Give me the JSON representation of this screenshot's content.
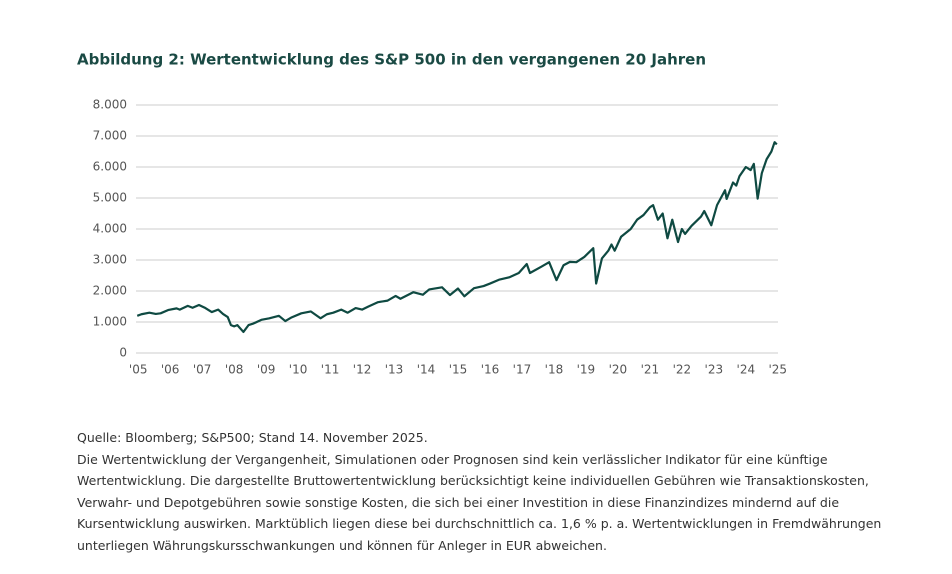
{
  "chart_data": {
    "type": "line",
    "title": "Abbildung 2: Wertentwicklung des S&P 500 in den vergangenen 20 Jahren",
    "x": [
      2005.87,
      2006.0,
      2006.25,
      2006.45,
      2006.6,
      2006.85,
      2007.1,
      2007.2,
      2007.45,
      2007.6,
      2007.8,
      2008.0,
      2008.2,
      2008.4,
      2008.55,
      2008.7,
      2008.8,
      2008.9,
      2009.0,
      2009.19,
      2009.35,
      2009.5,
      2009.75,
      2010.0,
      2010.3,
      2010.5,
      2010.7,
      2011.0,
      2011.3,
      2011.6,
      2011.8,
      2012.0,
      2012.25,
      2012.45,
      2012.7,
      2012.9,
      2013.1,
      2013.4,
      2013.7,
      2013.95,
      2014.1,
      2014.5,
      2014.8,
      2015.0,
      2015.4,
      2015.65,
      2015.9,
      2016.1,
      2016.4,
      2016.7,
      2016.9,
      2017.2,
      2017.5,
      2017.8,
      2018.05,
      2018.15,
      2018.5,
      2018.75,
      2018.98,
      2019.2,
      2019.4,
      2019.6,
      2019.85,
      2020.05,
      2020.13,
      2020.22,
      2020.4,
      2020.6,
      2020.7,
      2020.8,
      2021.0,
      2021.3,
      2021.5,
      2021.7,
      2021.9,
      2022.0,
      2022.15,
      2022.3,
      2022.45,
      2022.6,
      2022.78,
      2022.9,
      2023.0,
      2023.2,
      2023.5,
      2023.6,
      2023.82,
      2024.0,
      2024.25,
      2024.3,
      2024.5,
      2024.6,
      2024.7,
      2024.9,
      2025.05,
      2025.15,
      2025.27,
      2025.4,
      2025.55,
      2025.7,
      2025.8,
      2025.87
    ],
    "series": [
      {
        "name": "S&P500",
        "color": "#0f4a42",
        "values": [
          1200,
          1250,
          1300,
          1260,
          1280,
          1390,
          1440,
          1400,
          1520,
          1460,
          1550,
          1450,
          1320,
          1400,
          1260,
          1160,
          900,
          860,
          900,
          680,
          900,
          950,
          1070,
          1120,
          1200,
          1030,
          1150,
          1280,
          1340,
          1120,
          1250,
          1300,
          1400,
          1300,
          1450,
          1400,
          1500,
          1640,
          1690,
          1840,
          1750,
          1960,
          1880,
          2050,
          2120,
          1870,
          2080,
          1830,
          2090,
          2160,
          2240,
          2370,
          2440,
          2580,
          2870,
          2580,
          2780,
          2930,
          2350,
          2830,
          2940,
          2930,
          3100,
          3300,
          3380,
          2240,
          3050,
          3300,
          3500,
          3300,
          3750,
          4000,
          4300,
          4450,
          4700,
          4770,
          4300,
          4500,
          3700,
          4300,
          3580,
          4000,
          3840,
          4100,
          4400,
          4580,
          4120,
          4770,
          5250,
          4970,
          5500,
          5400,
          5700,
          6000,
          5900,
          6100,
          4980,
          5800,
          6250,
          6500,
          6800,
          6730
        ]
      }
    ],
    "xlim": [
      2005.8,
      2026.0
    ],
    "xticks": [
      {
        "value": 2005.9,
        "label": "'05"
      },
      {
        "value": 2006.9,
        "label": "'06"
      },
      {
        "value": 2007.9,
        "label": "'07"
      },
      {
        "value": 2008.9,
        "label": "'08"
      },
      {
        "value": 2009.9,
        "label": "'09"
      },
      {
        "value": 2010.9,
        "label": "'10"
      },
      {
        "value": 2011.9,
        "label": "'11"
      },
      {
        "value": 2012.9,
        "label": "'12"
      },
      {
        "value": 2013.9,
        "label": "'13"
      },
      {
        "value": 2014.9,
        "label": "'14"
      },
      {
        "value": 2015.9,
        "label": "'15"
      },
      {
        "value": 2016.9,
        "label": "'16"
      },
      {
        "value": 2017.9,
        "label": "'17"
      },
      {
        "value": 2018.9,
        "label": "'18"
      },
      {
        "value": 2019.9,
        "label": "'19"
      },
      {
        "value": 2020.9,
        "label": "'20"
      },
      {
        "value": 2021.9,
        "label": "'21"
      },
      {
        "value": 2022.9,
        "label": "'22"
      },
      {
        "value": 2023.9,
        "label": "'23"
      },
      {
        "value": 2024.9,
        "label": "'24"
      },
      {
        "value": 2025.9,
        "label": "'25"
      }
    ],
    "ylim": [
      0,
      8000
    ],
    "yticks": [
      0,
      {
        "value": 1000,
        "label": "1.000"
      },
      {
        "value": 2000,
        "label": "2.000"
      },
      {
        "value": 3000,
        "label": "3.000"
      },
      {
        "value": 4000,
        "label": "4.000"
      },
      {
        "value": 5000,
        "label": "5.000"
      },
      {
        "value": 6000,
        "label": "6.000"
      },
      {
        "value": 7000,
        "label": "7.000"
      },
      {
        "value": 8000,
        "label": "8.000"
      }
    ],
    "grid": true,
    "source": "Quelle: Bloomberg; S&P500; Stand 14. November 2025.",
    "note": "Die Wertentwicklung der Vergangenheit, Simulationen oder Prognosen sind kein verlässlicher Indikator für eine künftige Wertentwicklung. Die dargestellte Bruttowertentwicklung berücksichtigt keine individuellen Gebühren wie Transaktionskosten, Verwahr- und Depotgebühren sowie sonstige Kosten, die sich bei einer Investition in diese Finanzindizes mindernd auf die Kursentwicklung auswirken. Marktüblich liegen diese bei durchschnittlich ca. 1,6 % p. a. Wertentwicklungen in Fremdwährungen unterliegen Währungskursschwankungen und können für Anleger in EUR abweichen."
  }
}
